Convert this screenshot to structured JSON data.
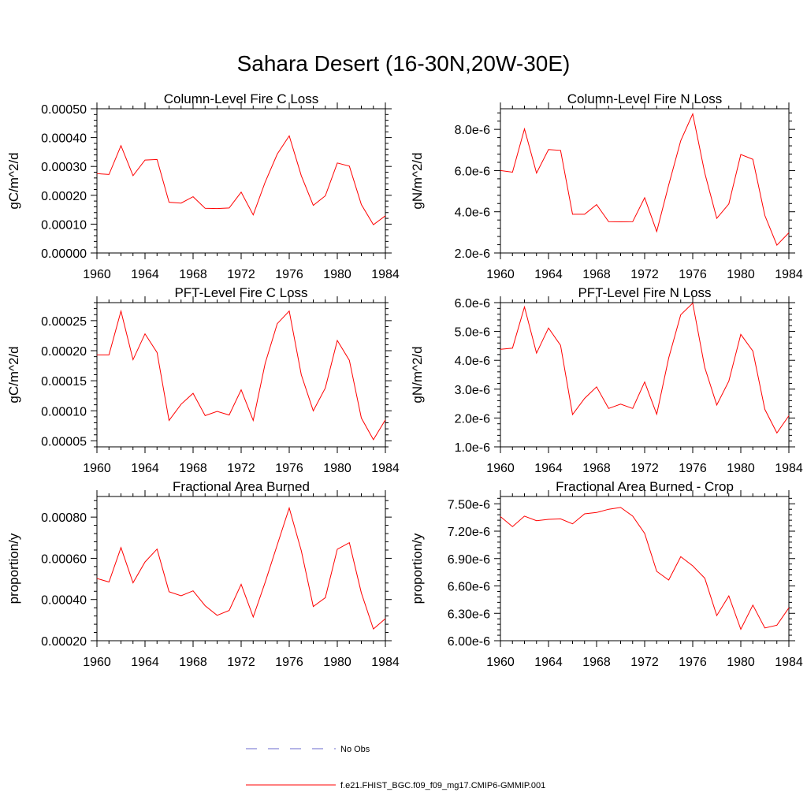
{
  "title": "Sahara Desert (16-30N,20W-30E)",
  "legend": {
    "obs_label": "No Obs",
    "obs_color": "#6a6acd",
    "model_label": "f.e21.FHIST_BGC.f09_f09_mg17.CMIP6-GMMIP.001",
    "model_color": "#ff0000"
  },
  "chart_data": [
    {
      "type": "line",
      "title": "Column-Level Fire C Loss",
      "ylabel": "gC/m^2/d",
      "xlim": [
        1960,
        1984
      ],
      "ylim": [
        0,
        0.0005
      ],
      "xticks": [
        1960,
        1964,
        1968,
        1972,
        1976,
        1980,
        1984
      ],
      "yticks": [
        0,
        0.0001,
        0.0002,
        0.0003,
        0.0004,
        0.0005
      ],
      "yticklabels": [
        "0.00000",
        "0.00010",
        "0.00020",
        "0.00030",
        "0.00040",
        "0.00050"
      ],
      "x": [
        1960,
        1961,
        1962,
        1963,
        1964,
        1965,
        1966,
        1967,
        1968,
        1969,
        1970,
        1971,
        1972,
        1973,
        1974,
        1975,
        1976,
        1977,
        1978,
        1979,
        1980,
        1981,
        1982,
        1983,
        1984
      ],
      "series": [
        {
          "name": "f.e21.FHIST_BGC.f09_f09_mg17.CMIP6-GMMIP.001",
          "values": [
            0.000275,
            0.000272,
            0.000372,
            0.000268,
            0.000322,
            0.000324,
            0.000176,
            0.000173,
            0.000195,
            0.000155,
            0.000154,
            0.000156,
            0.000211,
            0.000132,
            0.000246,
            0.000343,
            0.000406,
            0.000268,
            0.000165,
            0.000198,
            0.000312,
            0.000301,
            0.000168,
            9.8e-05,
            0.000129
          ]
        }
      ]
    },
    {
      "type": "line",
      "title": "Column-Level Fire N Loss",
      "ylabel": "gN/m^2/d",
      "xlim": [
        1960,
        1984
      ],
      "ylim": [
        2e-06,
        9e-06
      ],
      "xticks": [
        1960,
        1964,
        1968,
        1972,
        1976,
        1980,
        1984
      ],
      "yticks": [
        2e-06,
        4e-06,
        6e-06,
        8e-06
      ],
      "yticklabels": [
        "2.0e-6",
        "4.0e-6",
        "6.0e-6",
        "8.0e-6"
      ],
      "x": [
        1960,
        1961,
        1962,
        1963,
        1964,
        1965,
        1966,
        1967,
        1968,
        1969,
        1970,
        1971,
        1972,
        1973,
        1974,
        1975,
        1976,
        1977,
        1978,
        1979,
        1980,
        1981,
        1982,
        1983,
        1984
      ],
      "series": [
        {
          "name": "f.e21.FHIST_BGC.f09_f09_mg17.CMIP6-GMMIP.001",
          "values": [
            6e-06,
            5.92e-06,
            8.02e-06,
            5.88e-06,
            7.02e-06,
            6.98e-06,
            3.88e-06,
            3.88e-06,
            4.35e-06,
            3.52e-06,
            3.51e-06,
            3.52e-06,
            4.68e-06,
            3.04e-06,
            5.3e-06,
            7.45e-06,
            8.75e-06,
            5.88e-06,
            3.68e-06,
            4.38e-06,
            6.78e-06,
            6.55e-06,
            3.82e-06,
            2.38e-06,
            2.98e-06
          ]
        }
      ]
    },
    {
      "type": "line",
      "title": "PFT-Level Fire C Loss",
      "ylabel": "gC/m^2/d",
      "xlim": [
        1960,
        1984
      ],
      "ylim": [
        4e-05,
        0.00028
      ],
      "xticks": [
        1960,
        1964,
        1968,
        1972,
        1976,
        1980,
        1984
      ],
      "yticks": [
        5e-05,
        0.0001,
        0.00015,
        0.0002,
        0.00025
      ],
      "yticklabels": [
        "0.00005",
        "0.00010",
        "0.00015",
        "0.00020",
        "0.00025"
      ],
      "x": [
        1960,
        1961,
        1962,
        1963,
        1964,
        1965,
        1966,
        1967,
        1968,
        1969,
        1970,
        1971,
        1972,
        1973,
        1974,
        1975,
        1976,
        1977,
        1978,
        1979,
        1980,
        1981,
        1982,
        1983,
        1984
      ],
      "series": [
        {
          "name": "f.e21.FHIST_BGC.f09_f09_mg17.CMIP6-GMMIP.001",
          "values": [
            0.000193,
            0.000193,
            0.000266,
            0.000185,
            0.000228,
            0.000197,
            8.4e-05,
            0.000111,
            0.000129,
            9.2e-05,
            9.9e-05,
            9.3e-05,
            0.000135,
            8.4e-05,
            0.000179,
            0.000245,
            0.000266,
            0.00016,
            0.0001,
            0.000138,
            0.000217,
            0.000184,
            8.8e-05,
            5.2e-05,
            8.5e-05
          ]
        }
      ]
    },
    {
      "type": "line",
      "title": "PFT-Level Fire N Loss",
      "ylabel": "gN/m^2/d",
      "xlim": [
        1960,
        1984
      ],
      "ylim": [
        1e-06,
        6e-06
      ],
      "xticks": [
        1960,
        1964,
        1968,
        1972,
        1976,
        1980,
        1984
      ],
      "yticks": [
        1e-06,
        2e-06,
        3e-06,
        4e-06,
        5e-06,
        6e-06
      ],
      "yticklabels": [
        "1.0e-6",
        "2.0e-6",
        "3.0e-6",
        "4.0e-6",
        "5.0e-6",
        "6.0e-6"
      ],
      "x": [
        1960,
        1961,
        1962,
        1963,
        1964,
        1965,
        1966,
        1967,
        1968,
        1969,
        1970,
        1971,
        1972,
        1973,
        1974,
        1975,
        1976,
        1977,
        1978,
        1979,
        1980,
        1981,
        1982,
        1983,
        1984
      ],
      "series": [
        {
          "name": "f.e21.FHIST_BGC.f09_f09_mg17.CMIP6-GMMIP.001",
          "values": [
            4.38e-06,
            4.42e-06,
            5.85e-06,
            4.25e-06,
            5.12e-06,
            4.52e-06,
            2.12e-06,
            2.68e-06,
            3.08e-06,
            2.33e-06,
            2.48e-06,
            2.33e-06,
            3.25e-06,
            2.13e-06,
            4.08e-06,
            5.58e-06,
            5.98e-06,
            3.75e-06,
            2.45e-06,
            3.28e-06,
            4.9e-06,
            4.32e-06,
            2.3e-06,
            1.48e-06,
            2.08e-06
          ]
        }
      ]
    },
    {
      "type": "line",
      "title": "Fractional Area Burned",
      "ylabel": "proportion/y",
      "xlim": [
        1960,
        1984
      ],
      "ylim": [
        0.0002,
        0.0009
      ],
      "xticks": [
        1960,
        1964,
        1968,
        1972,
        1976,
        1980,
        1984
      ],
      "yticks": [
        0.0002,
        0.0004,
        0.0006,
        0.0008
      ],
      "yticklabels": [
        "0.00020",
        "0.00040",
        "0.00060",
        "0.00080"
      ],
      "x": [
        1960,
        1961,
        1962,
        1963,
        1964,
        1965,
        1966,
        1967,
        1968,
        1969,
        1970,
        1971,
        1972,
        1973,
        1974,
        1975,
        1976,
        1977,
        1978,
        1979,
        1980,
        1981,
        1982,
        1983,
        1984
      ],
      "series": [
        {
          "name": "f.e21.FHIST_BGC.f09_f09_mg17.CMIP6-GMMIP.001",
          "values": [
            0.000502,
            0.000485,
            0.000652,
            0.000481,
            0.000582,
            0.000645,
            0.000438,
            0.000418,
            0.000442,
            0.00037,
            0.000323,
            0.000347,
            0.000474,
            0.000315,
            0.000484,
            0.000665,
            0.000844,
            0.000637,
            0.000366,
            0.000409,
            0.000644,
            0.000676,
            0.000432,
            0.000257,
            0.000307
          ]
        }
      ]
    },
    {
      "type": "line",
      "title": "Fractional Area Burned - Crop",
      "ylabel": "proportion/y",
      "xlim": [
        1960,
        1984
      ],
      "ylim": [
        6e-06,
        7.58e-06
      ],
      "xticks": [
        1960,
        1964,
        1968,
        1972,
        1976,
        1980,
        1984
      ],
      "yticks": [
        6e-06,
        6.3e-06,
        6.6e-06,
        6.9e-06,
        7.2e-06,
        7.5e-06
      ],
      "yticklabels": [
        "6.00e-6",
        "6.30e-6",
        "6.60e-6",
        "6.90e-6",
        "7.20e-6",
        "7.50e-6"
      ],
      "x": [
        1960,
        1961,
        1962,
        1963,
        1964,
        1965,
        1966,
        1967,
        1968,
        1969,
        1970,
        1971,
        1972,
        1973,
        1974,
        1975,
        1976,
        1977,
        1978,
        1979,
        1980,
        1981,
        1982,
        1983,
        1984
      ],
      "series": [
        {
          "name": "f.e21.FHIST_BGC.f09_f09_mg17.CMIP6-GMMIP.001",
          "values": [
            7.36e-06,
            7.25e-06,
            7.365e-06,
            7.315e-06,
            7.33e-06,
            7.335e-06,
            7.28e-06,
            7.39e-06,
            7.405e-06,
            7.44e-06,
            7.46e-06,
            7.365e-06,
            7.175e-06,
            6.76e-06,
            6.665e-06,
            6.92e-06,
            6.82e-06,
            6.685e-06,
            6.275e-06,
            6.49e-06,
            6.125e-06,
            6.39e-06,
            6.14e-06,
            6.17e-06,
            6.36e-06
          ]
        }
      ]
    }
  ]
}
